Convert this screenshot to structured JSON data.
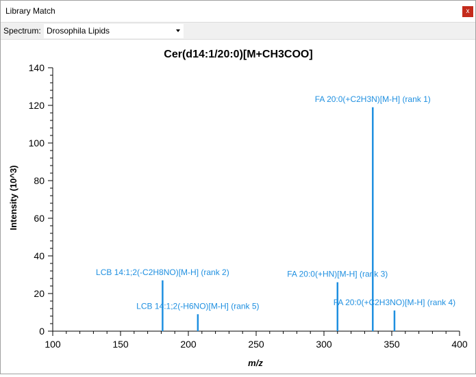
{
  "window": {
    "title": "Library Match",
    "close_label": "x"
  },
  "toolbar": {
    "spectrum_label": "Spectrum:",
    "spectrum_value": "Drosophila Lipids"
  },
  "colors": {
    "peak": "#1e8fe0",
    "axis": "#000000",
    "close": "#c42b1c"
  },
  "icons": {
    "close": "close-icon",
    "dropdown": "chevron-down-icon"
  },
  "chart_data": {
    "type": "bar",
    "title": "Cer(d14:1/20:0)[M+CH3COO]",
    "xlabel": "m/z",
    "ylabel": "Intensity (10^3)",
    "xlim": [
      100,
      400
    ],
    "ylim": [
      0,
      140
    ],
    "xticks": [
      100,
      150,
      200,
      250,
      300,
      350,
      400
    ],
    "yticks": [
      0,
      20,
      40,
      60,
      80,
      100,
      120,
      140
    ],
    "grid": false,
    "peaks": [
      {
        "x": 181.0,
        "y": 27,
        "label": "LCB 14:1;2(-C2H8NO)[M-H] (rank 2)"
      },
      {
        "x": 207.0,
        "y": 9,
        "label": "LCB 14:1;2(-H6NO)[M-H] (rank 5)"
      },
      {
        "x": 310.0,
        "y": 26,
        "label": "FA 20:0(+HN)[M-H] (rank 3)"
      },
      {
        "x": 336.0,
        "y": 119,
        "label": "FA 20:0(+C2H3N)[M-H] (rank 1)"
      },
      {
        "x": 352.0,
        "y": 11,
        "label": "FA 20:0(+C2H3NO)[M-H] (rank 4)"
      }
    ]
  }
}
